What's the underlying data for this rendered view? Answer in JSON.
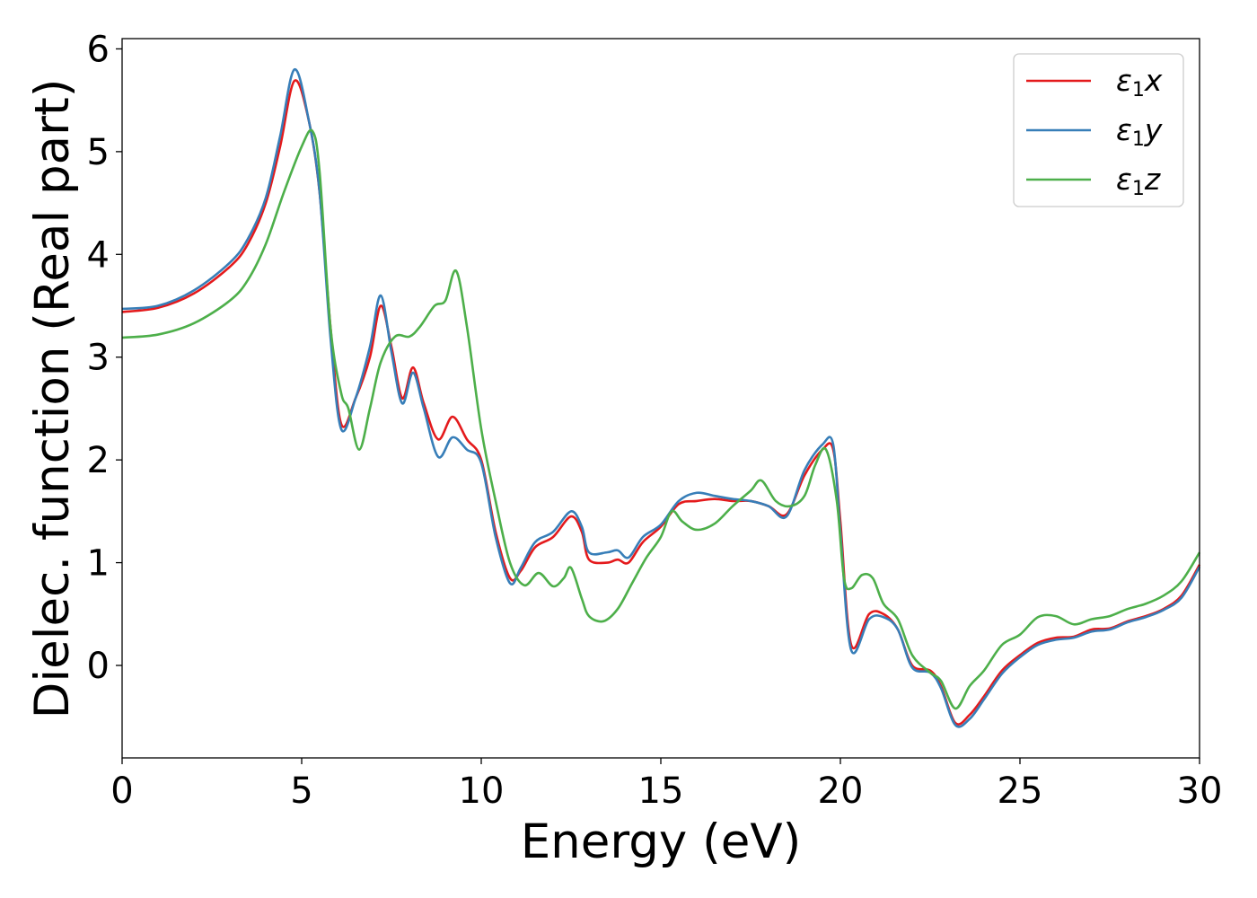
{
  "chart_data": {
    "type": "line",
    "xlabel": "Energy (eV)",
    "ylabel": "Dielec. function (Real part)",
    "xlim": [
      0,
      30
    ],
    "ylim": [
      -0.9,
      6.1
    ],
    "xticks": [
      "0",
      "5",
      "10",
      "15",
      "20",
      "25",
      "30"
    ],
    "yticks": [
      "0",
      "1",
      "2",
      "3",
      "4",
      "5",
      "6"
    ],
    "xtick_values": [
      0,
      5,
      10,
      15,
      20,
      25,
      30
    ],
    "ytick_values": [
      0,
      1,
      2,
      3,
      4,
      5,
      6
    ],
    "grid": false,
    "legend_position": "top-right",
    "series": [
      {
        "name": "ε₁x",
        "legend_sym": "ε",
        "legend_sub": "1",
        "legend_var": "x",
        "color": "#e41a1c",
        "points": [
          [
            0,
            3.44
          ],
          [
            1,
            3.48
          ],
          [
            2,
            3.62
          ],
          [
            3,
            3.88
          ],
          [
            3.5,
            4.1
          ],
          [
            4,
            4.5
          ],
          [
            4.4,
            5.05
          ],
          [
            4.8,
            5.69
          ],
          [
            5.2,
            5.3
          ],
          [
            5.5,
            4.6
          ],
          [
            5.8,
            3.3
          ],
          [
            6.1,
            2.35
          ],
          [
            6.5,
            2.6
          ],
          [
            6.9,
            3.0
          ],
          [
            7.2,
            3.5
          ],
          [
            7.5,
            3.1
          ],
          [
            7.8,
            2.6
          ],
          [
            8.1,
            2.9
          ],
          [
            8.4,
            2.55
          ],
          [
            8.8,
            2.2
          ],
          [
            9.2,
            2.42
          ],
          [
            9.6,
            2.2
          ],
          [
            10.0,
            2.0
          ],
          [
            10.4,
            1.3
          ],
          [
            10.8,
            0.85
          ],
          [
            11.1,
            0.92
          ],
          [
            11.5,
            1.15
          ],
          [
            12.0,
            1.25
          ],
          [
            12.5,
            1.45
          ],
          [
            12.8,
            1.3
          ],
          [
            13.0,
            1.03
          ],
          [
            13.5,
            1.0
          ],
          [
            13.8,
            1.03
          ],
          [
            14.1,
            1.0
          ],
          [
            14.5,
            1.2
          ],
          [
            15.0,
            1.35
          ],
          [
            15.5,
            1.57
          ],
          [
            16.0,
            1.6
          ],
          [
            16.5,
            1.62
          ],
          [
            17.0,
            1.6
          ],
          [
            17.5,
            1.6
          ],
          [
            18.0,
            1.55
          ],
          [
            18.5,
            1.47
          ],
          [
            19.0,
            1.85
          ],
          [
            19.5,
            2.1
          ],
          [
            19.8,
            2.1
          ],
          [
            20.0,
            1.4
          ],
          [
            20.3,
            0.2
          ],
          [
            20.8,
            0.5
          ],
          [
            21.2,
            0.5
          ],
          [
            21.6,
            0.35
          ],
          [
            22.0,
            0.0
          ],
          [
            22.5,
            -0.05
          ],
          [
            22.8,
            -0.2
          ],
          [
            23.2,
            -0.56
          ],
          [
            23.6,
            -0.48
          ],
          [
            24.0,
            -0.3
          ],
          [
            24.5,
            -0.05
          ],
          [
            25.0,
            0.1
          ],
          [
            25.5,
            0.22
          ],
          [
            26.0,
            0.27
          ],
          [
            26.5,
            0.28
          ],
          [
            27.0,
            0.35
          ],
          [
            27.5,
            0.36
          ],
          [
            28.0,
            0.43
          ],
          [
            28.5,
            0.48
          ],
          [
            29.0,
            0.55
          ],
          [
            29.5,
            0.68
          ],
          [
            30.0,
            0.98
          ]
        ]
      },
      {
        "name": "ε₁y",
        "legend_sym": "ε",
        "legend_sub": "1",
        "legend_var": "y",
        "color": "#377eb8",
        "points": [
          [
            0,
            3.47
          ],
          [
            1,
            3.5
          ],
          [
            2,
            3.65
          ],
          [
            3,
            3.92
          ],
          [
            3.5,
            4.15
          ],
          [
            4,
            4.55
          ],
          [
            4.4,
            5.15
          ],
          [
            4.8,
            5.8
          ],
          [
            5.2,
            5.3
          ],
          [
            5.5,
            4.6
          ],
          [
            5.8,
            3.2
          ],
          [
            6.1,
            2.3
          ],
          [
            6.5,
            2.6
          ],
          [
            6.9,
            3.1
          ],
          [
            7.2,
            3.6
          ],
          [
            7.5,
            3.05
          ],
          [
            7.8,
            2.55
          ],
          [
            8.1,
            2.85
          ],
          [
            8.4,
            2.5
          ],
          [
            8.8,
            2.03
          ],
          [
            9.2,
            2.22
          ],
          [
            9.6,
            2.1
          ],
          [
            10.0,
            1.97
          ],
          [
            10.4,
            1.25
          ],
          [
            10.8,
            0.8
          ],
          [
            11.1,
            0.95
          ],
          [
            11.5,
            1.2
          ],
          [
            12.0,
            1.3
          ],
          [
            12.5,
            1.5
          ],
          [
            12.8,
            1.35
          ],
          [
            13.0,
            1.1
          ],
          [
            13.5,
            1.1
          ],
          [
            13.8,
            1.12
          ],
          [
            14.1,
            1.05
          ],
          [
            14.5,
            1.25
          ],
          [
            15.0,
            1.37
          ],
          [
            15.5,
            1.6
          ],
          [
            16.0,
            1.68
          ],
          [
            16.5,
            1.65
          ],
          [
            17.0,
            1.62
          ],
          [
            17.5,
            1.6
          ],
          [
            18.0,
            1.55
          ],
          [
            18.5,
            1.45
          ],
          [
            19.0,
            1.9
          ],
          [
            19.5,
            2.15
          ],
          [
            19.8,
            2.15
          ],
          [
            20.0,
            1.3
          ],
          [
            20.3,
            0.15
          ],
          [
            20.8,
            0.45
          ],
          [
            21.2,
            0.47
          ],
          [
            21.6,
            0.35
          ],
          [
            22.0,
            -0.02
          ],
          [
            22.5,
            -0.07
          ],
          [
            22.8,
            -0.22
          ],
          [
            23.2,
            -0.58
          ],
          [
            23.6,
            -0.52
          ],
          [
            24.0,
            -0.33
          ],
          [
            24.5,
            -0.08
          ],
          [
            25.0,
            0.08
          ],
          [
            25.5,
            0.2
          ],
          [
            26.0,
            0.25
          ],
          [
            26.5,
            0.27
          ],
          [
            27.0,
            0.33
          ],
          [
            27.5,
            0.35
          ],
          [
            28.0,
            0.42
          ],
          [
            28.5,
            0.47
          ],
          [
            29.0,
            0.54
          ],
          [
            29.5,
            0.66
          ],
          [
            30.0,
            0.96
          ]
        ]
      },
      {
        "name": "ε₁z",
        "legend_sym": "ε",
        "legend_sub": "1",
        "legend_var": "z",
        "color": "#4daf4a",
        "points": [
          [
            0,
            3.19
          ],
          [
            1,
            3.22
          ],
          [
            2,
            3.33
          ],
          [
            3,
            3.55
          ],
          [
            3.5,
            3.75
          ],
          [
            4,
            4.1
          ],
          [
            4.5,
            4.6
          ],
          [
            5.0,
            5.05
          ],
          [
            5.3,
            5.2
          ],
          [
            5.5,
            4.8
          ],
          [
            5.8,
            3.3
          ],
          [
            6.1,
            2.65
          ],
          [
            6.3,
            2.5
          ],
          [
            6.6,
            2.1
          ],
          [
            6.9,
            2.5
          ],
          [
            7.2,
            2.95
          ],
          [
            7.6,
            3.2
          ],
          [
            8.0,
            3.2
          ],
          [
            8.3,
            3.3
          ],
          [
            8.7,
            3.5
          ],
          [
            9.0,
            3.55
          ],
          [
            9.3,
            3.84
          ],
          [
            9.6,
            3.3
          ],
          [
            10.0,
            2.3
          ],
          [
            10.4,
            1.6
          ],
          [
            10.8,
            1.0
          ],
          [
            11.2,
            0.78
          ],
          [
            11.6,
            0.9
          ],
          [
            12.0,
            0.77
          ],
          [
            12.3,
            0.85
          ],
          [
            12.5,
            0.95
          ],
          [
            12.8,
            0.65
          ],
          [
            13.0,
            0.48
          ],
          [
            13.4,
            0.43
          ],
          [
            13.8,
            0.55
          ],
          [
            14.2,
            0.8
          ],
          [
            14.6,
            1.05
          ],
          [
            15.0,
            1.25
          ],
          [
            15.3,
            1.5
          ],
          [
            15.6,
            1.4
          ],
          [
            16.0,
            1.32
          ],
          [
            16.5,
            1.38
          ],
          [
            17.0,
            1.55
          ],
          [
            17.5,
            1.7
          ],
          [
            17.8,
            1.8
          ],
          [
            18.2,
            1.6
          ],
          [
            18.6,
            1.55
          ],
          [
            19.0,
            1.65
          ],
          [
            19.3,
            1.95
          ],
          [
            19.6,
            2.1
          ],
          [
            19.9,
            1.6
          ],
          [
            20.1,
            0.85
          ],
          [
            20.3,
            0.75
          ],
          [
            20.6,
            0.88
          ],
          [
            20.9,
            0.85
          ],
          [
            21.2,
            0.6
          ],
          [
            21.6,
            0.45
          ],
          [
            22.0,
            0.1
          ],
          [
            22.5,
            -0.07
          ],
          [
            22.8,
            -0.15
          ],
          [
            23.2,
            -0.42
          ],
          [
            23.6,
            -0.2
          ],
          [
            24.0,
            -0.05
          ],
          [
            24.5,
            0.2
          ],
          [
            25.0,
            0.3
          ],
          [
            25.5,
            0.47
          ],
          [
            26.0,
            0.48
          ],
          [
            26.5,
            0.4
          ],
          [
            27.0,
            0.45
          ],
          [
            27.5,
            0.48
          ],
          [
            28.0,
            0.55
          ],
          [
            28.5,
            0.6
          ],
          [
            29.0,
            0.68
          ],
          [
            29.5,
            0.82
          ],
          [
            30.0,
            1.1
          ]
        ]
      }
    ]
  }
}
